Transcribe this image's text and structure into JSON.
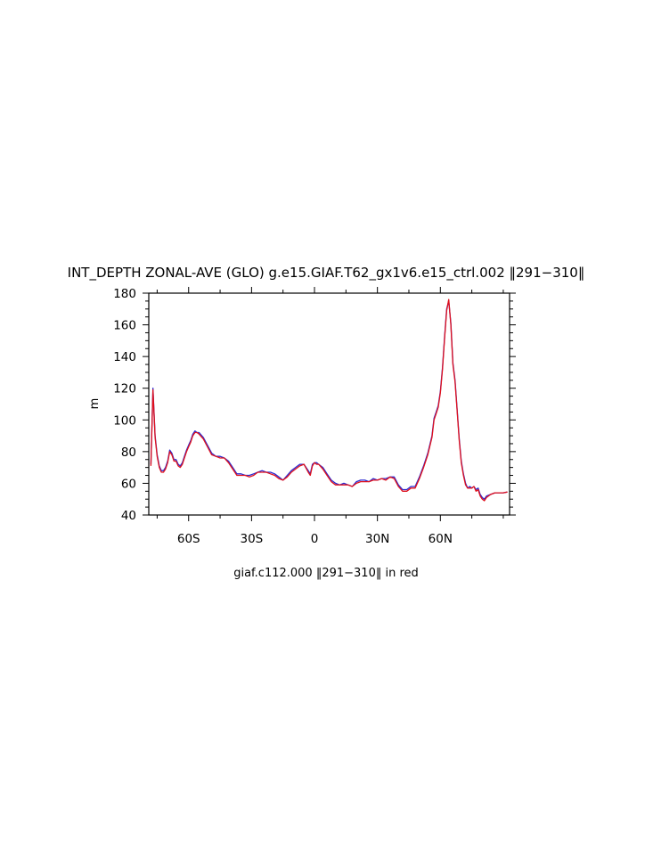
{
  "chart_data": {
    "type": "line",
    "title": "INT_DEPTH ZONAL-AVE (GLO) g.e15.GIAF.T62_gx1v6.e15_ctrl.002 ‖291−310‖",
    "ylabel": "m",
    "xlabel": "",
    "caption": "giaf.c112.000 ‖291−310‖ in red",
    "xlim": [
      -79,
      93
    ],
    "ylim": [
      40,
      180
    ],
    "xticks": [
      {
        "value": -60,
        "label": "60S"
      },
      {
        "value": -30,
        "label": "30S"
      },
      {
        "value": 0,
        "label": "0"
      },
      {
        "value": 30,
        "label": "30N"
      },
      {
        "value": 60,
        "label": "60N"
      }
    ],
    "yticks": [
      {
        "value": 40,
        "label": "40"
      },
      {
        "value": 60,
        "label": "60"
      },
      {
        "value": 80,
        "label": "80"
      },
      {
        "value": 100,
        "label": "100"
      },
      {
        "value": 120,
        "label": "120"
      },
      {
        "value": 140,
        "label": "140"
      },
      {
        "value": 160,
        "label": "160"
      },
      {
        "value": 180,
        "label": "180"
      }
    ],
    "grid": false,
    "series": [
      {
        "color": "#2a2ad0",
        "x": [
          -78,
          -77,
          -76.5,
          -76,
          -75,
          -74,
          -73,
          -72,
          -71,
          -70,
          -69,
          -68,
          -67,
          -66,
          -65,
          -64,
          -63,
          -62,
          -61,
          -60,
          -59,
          -58,
          -57,
          -56,
          -55,
          -53,
          -51,
          -49,
          -47,
          -45,
          -43,
          -41,
          -39,
          -37,
          -35,
          -33,
          -31,
          -29,
          -27,
          -25,
          -23,
          -21,
          -19,
          -17,
          -15,
          -13,
          -11,
          -9,
          -7,
          -5,
          -3,
          -2,
          -1,
          0,
          1,
          2,
          4,
          6,
          8,
          10,
          12,
          14,
          16,
          18,
          20,
          22,
          24,
          26,
          28,
          30,
          32,
          34,
          36,
          38,
          40,
          42,
          44,
          46,
          48,
          50,
          52,
          54,
          56,
          57,
          58,
          59,
          60,
          61,
          62,
          63,
          64,
          65,
          66,
          67,
          68,
          69,
          70,
          71,
          72,
          73,
          74,
          75,
          76,
          77,
          78,
          79,
          80,
          81,
          82,
          84,
          86,
          88,
          90,
          92
        ],
        "y": [
          72,
          120,
          105,
          90,
          78,
          71,
          68,
          68,
          70,
          74,
          81,
          79,
          75,
          75,
          72,
          71,
          73,
          77,
          81,
          84,
          87,
          91,
          93,
          92,
          92,
          89,
          84,
          79,
          77,
          77,
          76,
          74,
          70,
          66,
          66,
          65,
          65,
          66,
          67,
          68,
          67,
          67,
          66,
          64,
          62,
          65,
          68,
          70,
          72,
          72,
          68,
          66,
          72,
          73,
          73,
          72,
          70,
          66,
          62,
          60,
          59,
          60,
          59,
          58,
          61,
          62,
          62,
          61,
          63,
          62,
          63,
          63,
          64,
          64,
          59,
          56,
          56,
          58,
          58,
          64,
          71,
          79,
          90,
          101,
          105,
          109,
          118,
          133,
          152,
          170,
          175,
          161,
          136,
          125,
          107,
          88,
          74,
          66,
          60,
          57,
          58,
          57,
          58,
          56,
          57,
          53,
          51,
          50,
          52,
          53,
          54,
          54,
          54,
          54.5
        ]
      },
      {
        "color": "#e0101c",
        "x": [
          -78,
          -77,
          -76.5,
          -76,
          -75,
          -74,
          -73,
          -72,
          -71,
          -70,
          -69,
          -68,
          -67,
          -66,
          -65,
          -64,
          -63,
          -62,
          -61,
          -60,
          -59,
          -58,
          -57,
          -56,
          -55,
          -53,
          -51,
          -49,
          -47,
          -45,
          -43,
          -41,
          -39,
          -37,
          -35,
          -33,
          -31,
          -29,
          -27,
          -25,
          -23,
          -21,
          -19,
          -17,
          -15,
          -13,
          -11,
          -9,
          -7,
          -5,
          -3,
          -2,
          -1,
          0,
          1,
          2,
          4,
          6,
          8,
          10,
          12,
          14,
          16,
          18,
          20,
          22,
          24,
          26,
          28,
          30,
          32,
          34,
          36,
          38,
          40,
          42,
          44,
          46,
          48,
          50,
          52,
          54,
          56,
          57,
          58,
          59,
          60,
          61,
          62,
          63,
          64,
          65,
          66,
          67,
          68,
          69,
          70,
          71,
          72,
          73,
          74,
          75,
          76,
          77,
          78,
          79,
          80,
          81,
          82,
          84,
          86,
          88,
          90,
          92
        ],
        "y": [
          71,
          119,
          104,
          89,
          77,
          70,
          67,
          67,
          69,
          73,
          80,
          78,
          74,
          74,
          71,
          70,
          72,
          76,
          80,
          83,
          86,
          90,
          92,
          92,
          91,
          88,
          83,
          78,
          77,
          76,
          76,
          73,
          69,
          65,
          65,
          65,
          64,
          65,
          67,
          67,
          67,
          66,
          65,
          63,
          62,
          64,
          67,
          69,
          71,
          72,
          67,
          65,
          71,
          73,
          72,
          72,
          69,
          65,
          61,
          59,
          59,
          59,
          59,
          58,
          60,
          61,
          61,
          61,
          62,
          62,
          63,
          62,
          64,
          63,
          58,
          55,
          55,
          57,
          57,
          63,
          70,
          78,
          89,
          100,
          104,
          108,
          117,
          132,
          151,
          169,
          176,
          160,
          135,
          124,
          106,
          87,
          73,
          65,
          59,
          57,
          57,
          57,
          58,
          55,
          56,
          52,
          50,
          49,
          51,
          53,
          54,
          54,
          54,
          54.5
        ]
      }
    ]
  }
}
